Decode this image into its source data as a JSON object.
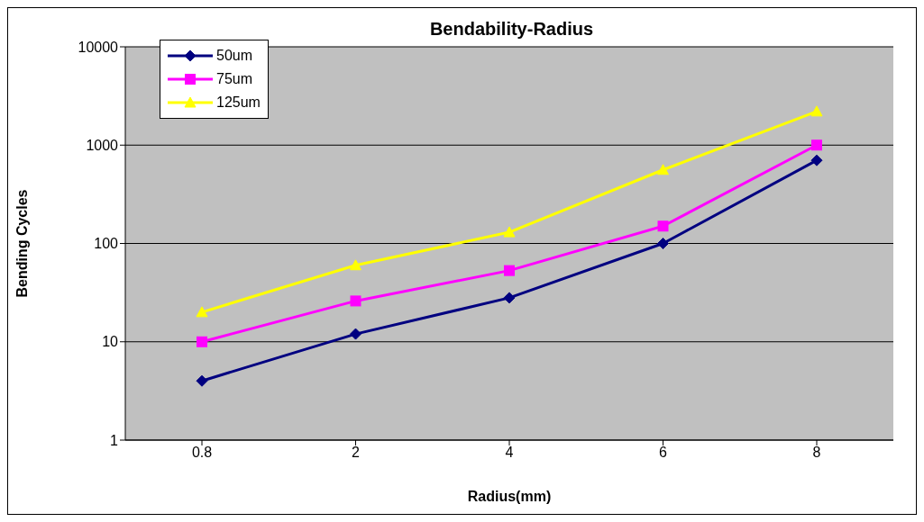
{
  "chart_data": {
    "type": "line",
    "title": "Bendability-Radius",
    "xlabel": "Radius(mm)",
    "ylabel": "Bending Cycles",
    "categories": [
      "0.8",
      "2",
      "4",
      "6",
      "8"
    ],
    "series": [
      {
        "name": "50um",
        "color": "#000080",
        "marker": "diamond",
        "values": [
          4,
          12,
          28,
          100,
          700
        ]
      },
      {
        "name": "75um",
        "color": "#ff00ff",
        "marker": "square",
        "values": [
          10,
          26,
          53,
          150,
          1000
        ]
      },
      {
        "name": "125um",
        "color": "#ffff00",
        "marker": "triangle",
        "values": [
          20,
          60,
          130,
          560,
          2200
        ]
      }
    ],
    "log": true,
    "ylim": [
      1,
      10000
    ],
    "yticks": [
      1,
      10,
      100,
      1000,
      10000
    ],
    "grid": "y",
    "legend": "top left",
    "line_style": "solid"
  }
}
